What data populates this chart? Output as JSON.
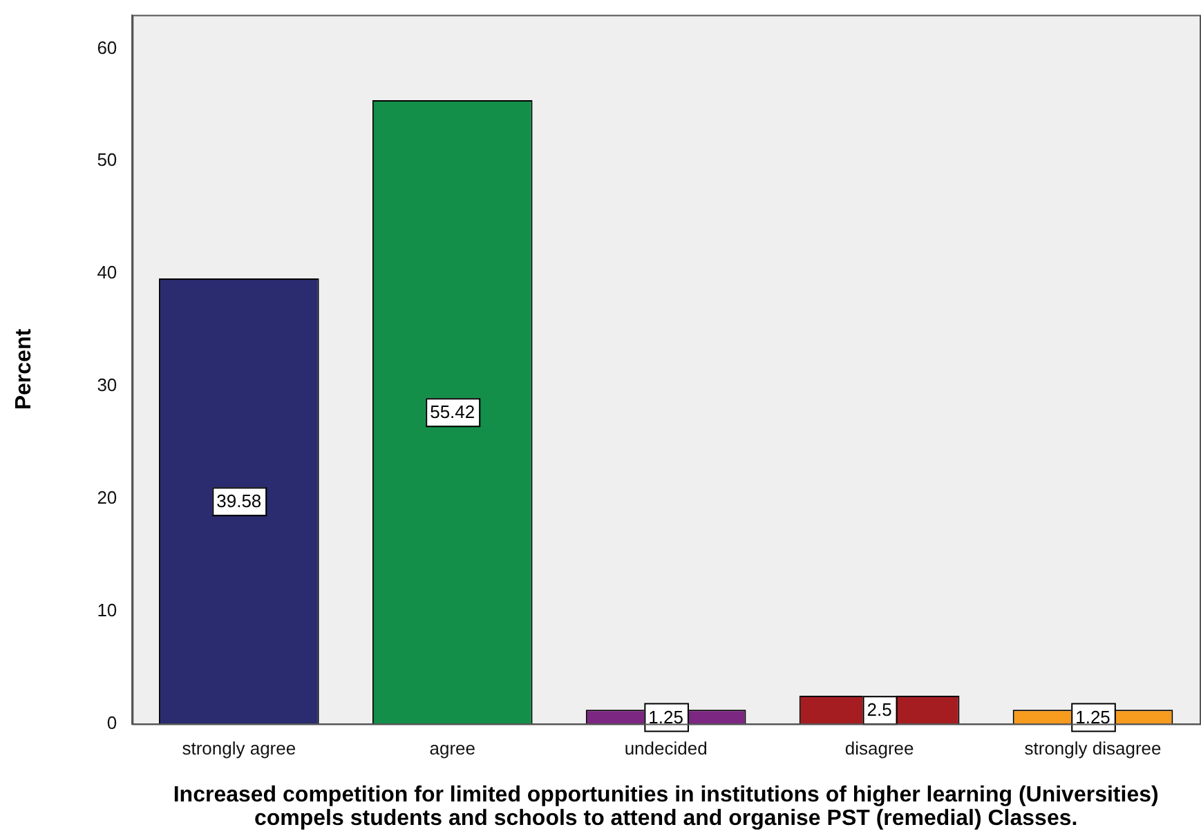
{
  "chart_data": {
    "type": "bar",
    "xlabel": "Increased competition for limited opportunities in institutions of higher learning (Universities) compels students and schools to attend and organise PST (remedial) Classes.",
    "ylabel": "Percent",
    "categories": [
      "strongly agree",
      "agree",
      "undecided",
      "disagree",
      "strongly disagree"
    ],
    "values": [
      39.58,
      55.42,
      1.25,
      2.5,
      1.25
    ],
    "colors": [
      "#2a2c6f",
      "#148f4a",
      "#7c2782",
      "#a51d21",
      "#f79b1e"
    ],
    "ylim": [
      0,
      63
    ],
    "yticks": [
      0,
      10,
      20,
      30,
      40,
      50,
      60
    ],
    "grid": false,
    "legend": false,
    "data_labels": true
  }
}
